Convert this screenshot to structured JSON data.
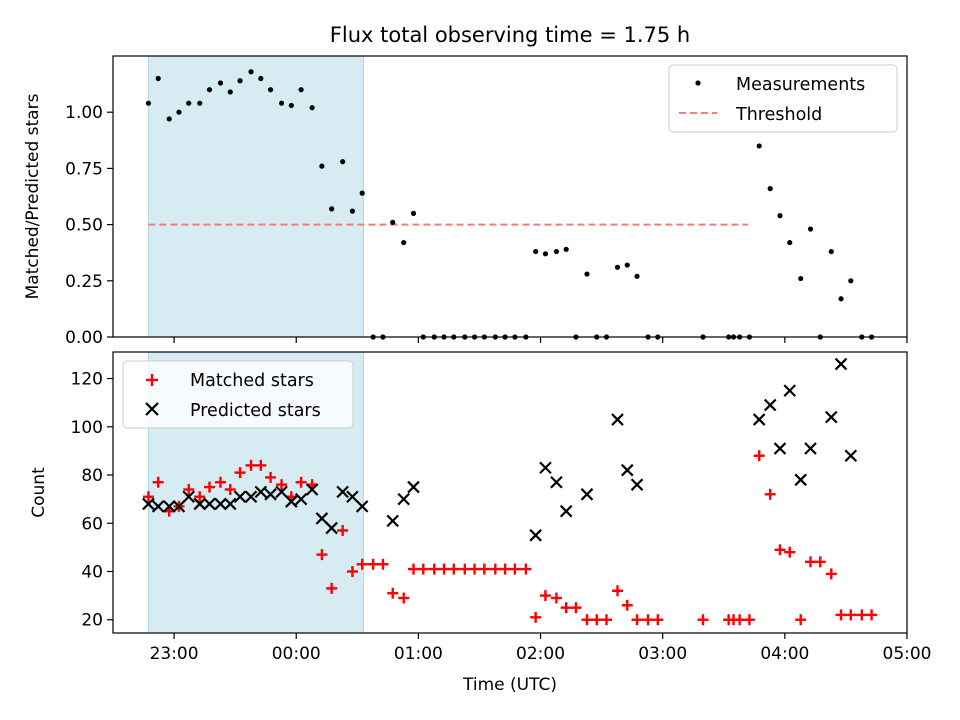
{
  "title": "Flux total observing time = 1.75 h",
  "colors": {
    "shade": "#add8e6",
    "measurements": "#000000",
    "threshold": "#ff7777",
    "matched": "#ff0000",
    "predicted": "#000000"
  },
  "chart_data": [
    {
      "type": "scatter",
      "panel": "top",
      "title": "Flux total observing time = 1.75 h",
      "xlabel": "",
      "ylabel": "Matched/Predicted stars",
      "x_unit": "hours since 23:00 UTC",
      "xlim": [
        -0.5,
        6.0
      ],
      "ylim": [
        0.0,
        1.25
      ],
      "yticks": [
        0.0,
        0.25,
        0.5,
        0.75,
        1.0
      ],
      "ytick_labels": [
        "0.00",
        "0.25",
        "0.50",
        "0.75",
        "1.00"
      ],
      "shaded_region": [
        -0.21,
        1.55
      ],
      "legend": {
        "placement": "top-right",
        "entries": [
          "Measurements",
          "Threshold"
        ]
      },
      "threshold": {
        "name": "Threshold",
        "y": 0.5,
        "x_range": [
          -0.21,
          4.7
        ]
      },
      "series": [
        {
          "name": "Measurements",
          "marker": "dot",
          "points": [
            [
              -0.21,
              1.04
            ],
            [
              -0.13,
              1.15
            ],
            [
              -0.04,
              0.97
            ],
            [
              0.04,
              1.0
            ],
            [
              0.12,
              1.04
            ],
            [
              0.21,
              1.04
            ],
            [
              0.29,
              1.1
            ],
            [
              0.38,
              1.13
            ],
            [
              0.46,
              1.09
            ],
            [
              0.54,
              1.14
            ],
            [
              0.63,
              1.18
            ],
            [
              0.71,
              1.15
            ],
            [
              0.79,
              1.1
            ],
            [
              0.88,
              1.04
            ],
            [
              0.96,
              1.03
            ],
            [
              1.04,
              1.1
            ],
            [
              1.13,
              1.02
            ],
            [
              1.21,
              0.76
            ],
            [
              1.29,
              0.57
            ],
            [
              1.38,
              0.78
            ],
            [
              1.46,
              0.56
            ],
            [
              1.54,
              0.64
            ],
            [
              1.63,
              0.0
            ],
            [
              1.71,
              0.0
            ],
            [
              1.79,
              0.51
            ],
            [
              1.88,
              0.42
            ],
            [
              1.96,
              0.55
            ],
            [
              2.04,
              0.0
            ],
            [
              2.13,
              0.0
            ],
            [
              2.21,
              0.0
            ],
            [
              2.29,
              0.0
            ],
            [
              2.38,
              0.0
            ],
            [
              2.46,
              0.0
            ],
            [
              2.54,
              0.0
            ],
            [
              2.63,
              0.0
            ],
            [
              2.71,
              0.0
            ],
            [
              2.79,
              0.0
            ],
            [
              2.88,
              0.0
            ],
            [
              2.96,
              0.38
            ],
            [
              3.04,
              0.37
            ],
            [
              3.13,
              0.38
            ],
            [
              3.21,
              0.39
            ],
            [
              3.29,
              0.0
            ],
            [
              3.38,
              0.28
            ],
            [
              3.46,
              0.0
            ],
            [
              3.54,
              0.0
            ],
            [
              3.63,
              0.31
            ],
            [
              3.71,
              0.32
            ],
            [
              3.79,
              0.27
            ],
            [
              3.88,
              0.0
            ],
            [
              3.96,
              0.0
            ],
            [
              4.33,
              0.0
            ],
            [
              4.54,
              0.0
            ],
            [
              4.58,
              0.0
            ],
            [
              4.63,
              0.0
            ],
            [
              4.71,
              0.0
            ],
            [
              4.79,
              0.85
            ],
            [
              4.88,
              0.66
            ],
            [
              4.96,
              0.54
            ],
            [
              5.04,
              0.42
            ],
            [
              5.13,
              0.26
            ],
            [
              5.21,
              0.48
            ],
            [
              5.29,
              0.0
            ],
            [
              5.38,
              0.38
            ],
            [
              5.46,
              0.17
            ],
            [
              5.54,
              0.25
            ],
            [
              5.63,
              0.0
            ],
            [
              5.71,
              0.0
            ]
          ]
        }
      ]
    },
    {
      "type": "scatter",
      "panel": "bottom",
      "xlabel": "Time (UTC)",
      "ylabel": "Count",
      "x_unit": "hours since 23:00 UTC",
      "xlim": [
        -0.5,
        6.0
      ],
      "ylim": [
        14.5,
        131
      ],
      "xticks": [
        0,
        1,
        2,
        3,
        4,
        5,
        6
      ],
      "xtick_labels": [
        "23:00",
        "00:00",
        "01:00",
        "02:00",
        "03:00",
        "04:00",
        "05:00"
      ],
      "yticks": [
        20,
        40,
        60,
        80,
        100,
        120
      ],
      "ytick_labels": [
        "20",
        "40",
        "60",
        "80",
        "100",
        "120"
      ],
      "shaded_region": [
        -0.21,
        1.55
      ],
      "legend": {
        "placement": "top-left",
        "entries": [
          "Matched stars",
          "Predicted stars"
        ]
      },
      "series": [
        {
          "name": "Matched stars",
          "marker": "plus",
          "points": [
            [
              -0.21,
              71
            ],
            [
              -0.13,
              77
            ],
            [
              -0.04,
              65
            ],
            [
              0.04,
              67
            ],
            [
              0.12,
              74
            ],
            [
              0.21,
              71
            ],
            [
              0.29,
              75
            ],
            [
              0.38,
              77
            ],
            [
              0.46,
              74
            ],
            [
              0.54,
              81
            ],
            [
              0.63,
              84
            ],
            [
              0.71,
              84
            ],
            [
              0.79,
              79
            ],
            [
              0.88,
              76
            ],
            [
              0.96,
              71
            ],
            [
              1.04,
              77
            ],
            [
              1.13,
              76
            ],
            [
              1.21,
              47
            ],
            [
              1.29,
              33
            ],
            [
              1.38,
              57
            ],
            [
              1.46,
              40
            ],
            [
              1.54,
              43
            ],
            [
              1.63,
              43
            ],
            [
              1.71,
              43
            ],
            [
              1.79,
              31
            ],
            [
              1.88,
              29
            ],
            [
              1.96,
              41
            ],
            [
              2.04,
              41
            ],
            [
              2.13,
              41
            ],
            [
              2.21,
              41
            ],
            [
              2.29,
              41
            ],
            [
              2.38,
              41
            ],
            [
              2.46,
              41
            ],
            [
              2.54,
              41
            ],
            [
              2.63,
              41
            ],
            [
              2.71,
              41
            ],
            [
              2.79,
              41
            ],
            [
              2.88,
              41
            ],
            [
              2.96,
              21
            ],
            [
              3.04,
              30
            ],
            [
              3.13,
              29
            ],
            [
              3.21,
              25
            ],
            [
              3.29,
              25
            ],
            [
              3.38,
              20
            ],
            [
              3.46,
              20
            ],
            [
              3.54,
              20
            ],
            [
              3.63,
              32
            ],
            [
              3.71,
              26
            ],
            [
              3.79,
              20
            ],
            [
              3.88,
              20
            ],
            [
              3.96,
              20
            ],
            [
              4.33,
              20
            ],
            [
              4.54,
              20
            ],
            [
              4.58,
              20
            ],
            [
              4.63,
              20
            ],
            [
              4.71,
              20
            ],
            [
              4.79,
              88
            ],
            [
              4.88,
              72
            ],
            [
              4.96,
              49
            ],
            [
              5.04,
              48
            ],
            [
              5.13,
              20
            ],
            [
              5.21,
              44
            ],
            [
              5.29,
              44
            ],
            [
              5.38,
              39
            ],
            [
              5.46,
              22
            ],
            [
              5.54,
              22
            ],
            [
              5.63,
              22
            ],
            [
              5.71,
              22
            ]
          ]
        },
        {
          "name": "Predicted stars",
          "marker": "x",
          "points": [
            [
              -0.21,
              68
            ],
            [
              -0.13,
              67
            ],
            [
              -0.04,
              67
            ],
            [
              0.04,
              67
            ],
            [
              0.12,
              71
            ],
            [
              0.21,
              68
            ],
            [
              0.29,
              68
            ],
            [
              0.38,
              68
            ],
            [
              0.46,
              68
            ],
            [
              0.54,
              71
            ],
            [
              0.63,
              71
            ],
            [
              0.71,
              73
            ],
            [
              0.79,
              72
            ],
            [
              0.88,
              73
            ],
            [
              0.96,
              69
            ],
            [
              1.04,
              70
            ],
            [
              1.13,
              74
            ],
            [
              1.21,
              62
            ],
            [
              1.29,
              58
            ],
            [
              1.38,
              73
            ],
            [
              1.46,
              71
            ],
            [
              1.54,
              67
            ],
            [
              1.79,
              61
            ],
            [
              1.88,
              70
            ],
            [
              1.96,
              75
            ],
            [
              2.96,
              55
            ],
            [
              3.04,
              83
            ],
            [
              3.13,
              77
            ],
            [
              3.21,
              65
            ],
            [
              3.38,
              72
            ],
            [
              3.63,
              103
            ],
            [
              3.71,
              82
            ],
            [
              3.79,
              76
            ],
            [
              4.79,
              103
            ],
            [
              4.88,
              109
            ],
            [
              4.96,
              91
            ],
            [
              5.04,
              115
            ],
            [
              5.13,
              78
            ],
            [
              5.21,
              91
            ],
            [
              5.38,
              104
            ],
            [
              5.46,
              126
            ],
            [
              5.54,
              88
            ]
          ]
        }
      ]
    }
  ]
}
